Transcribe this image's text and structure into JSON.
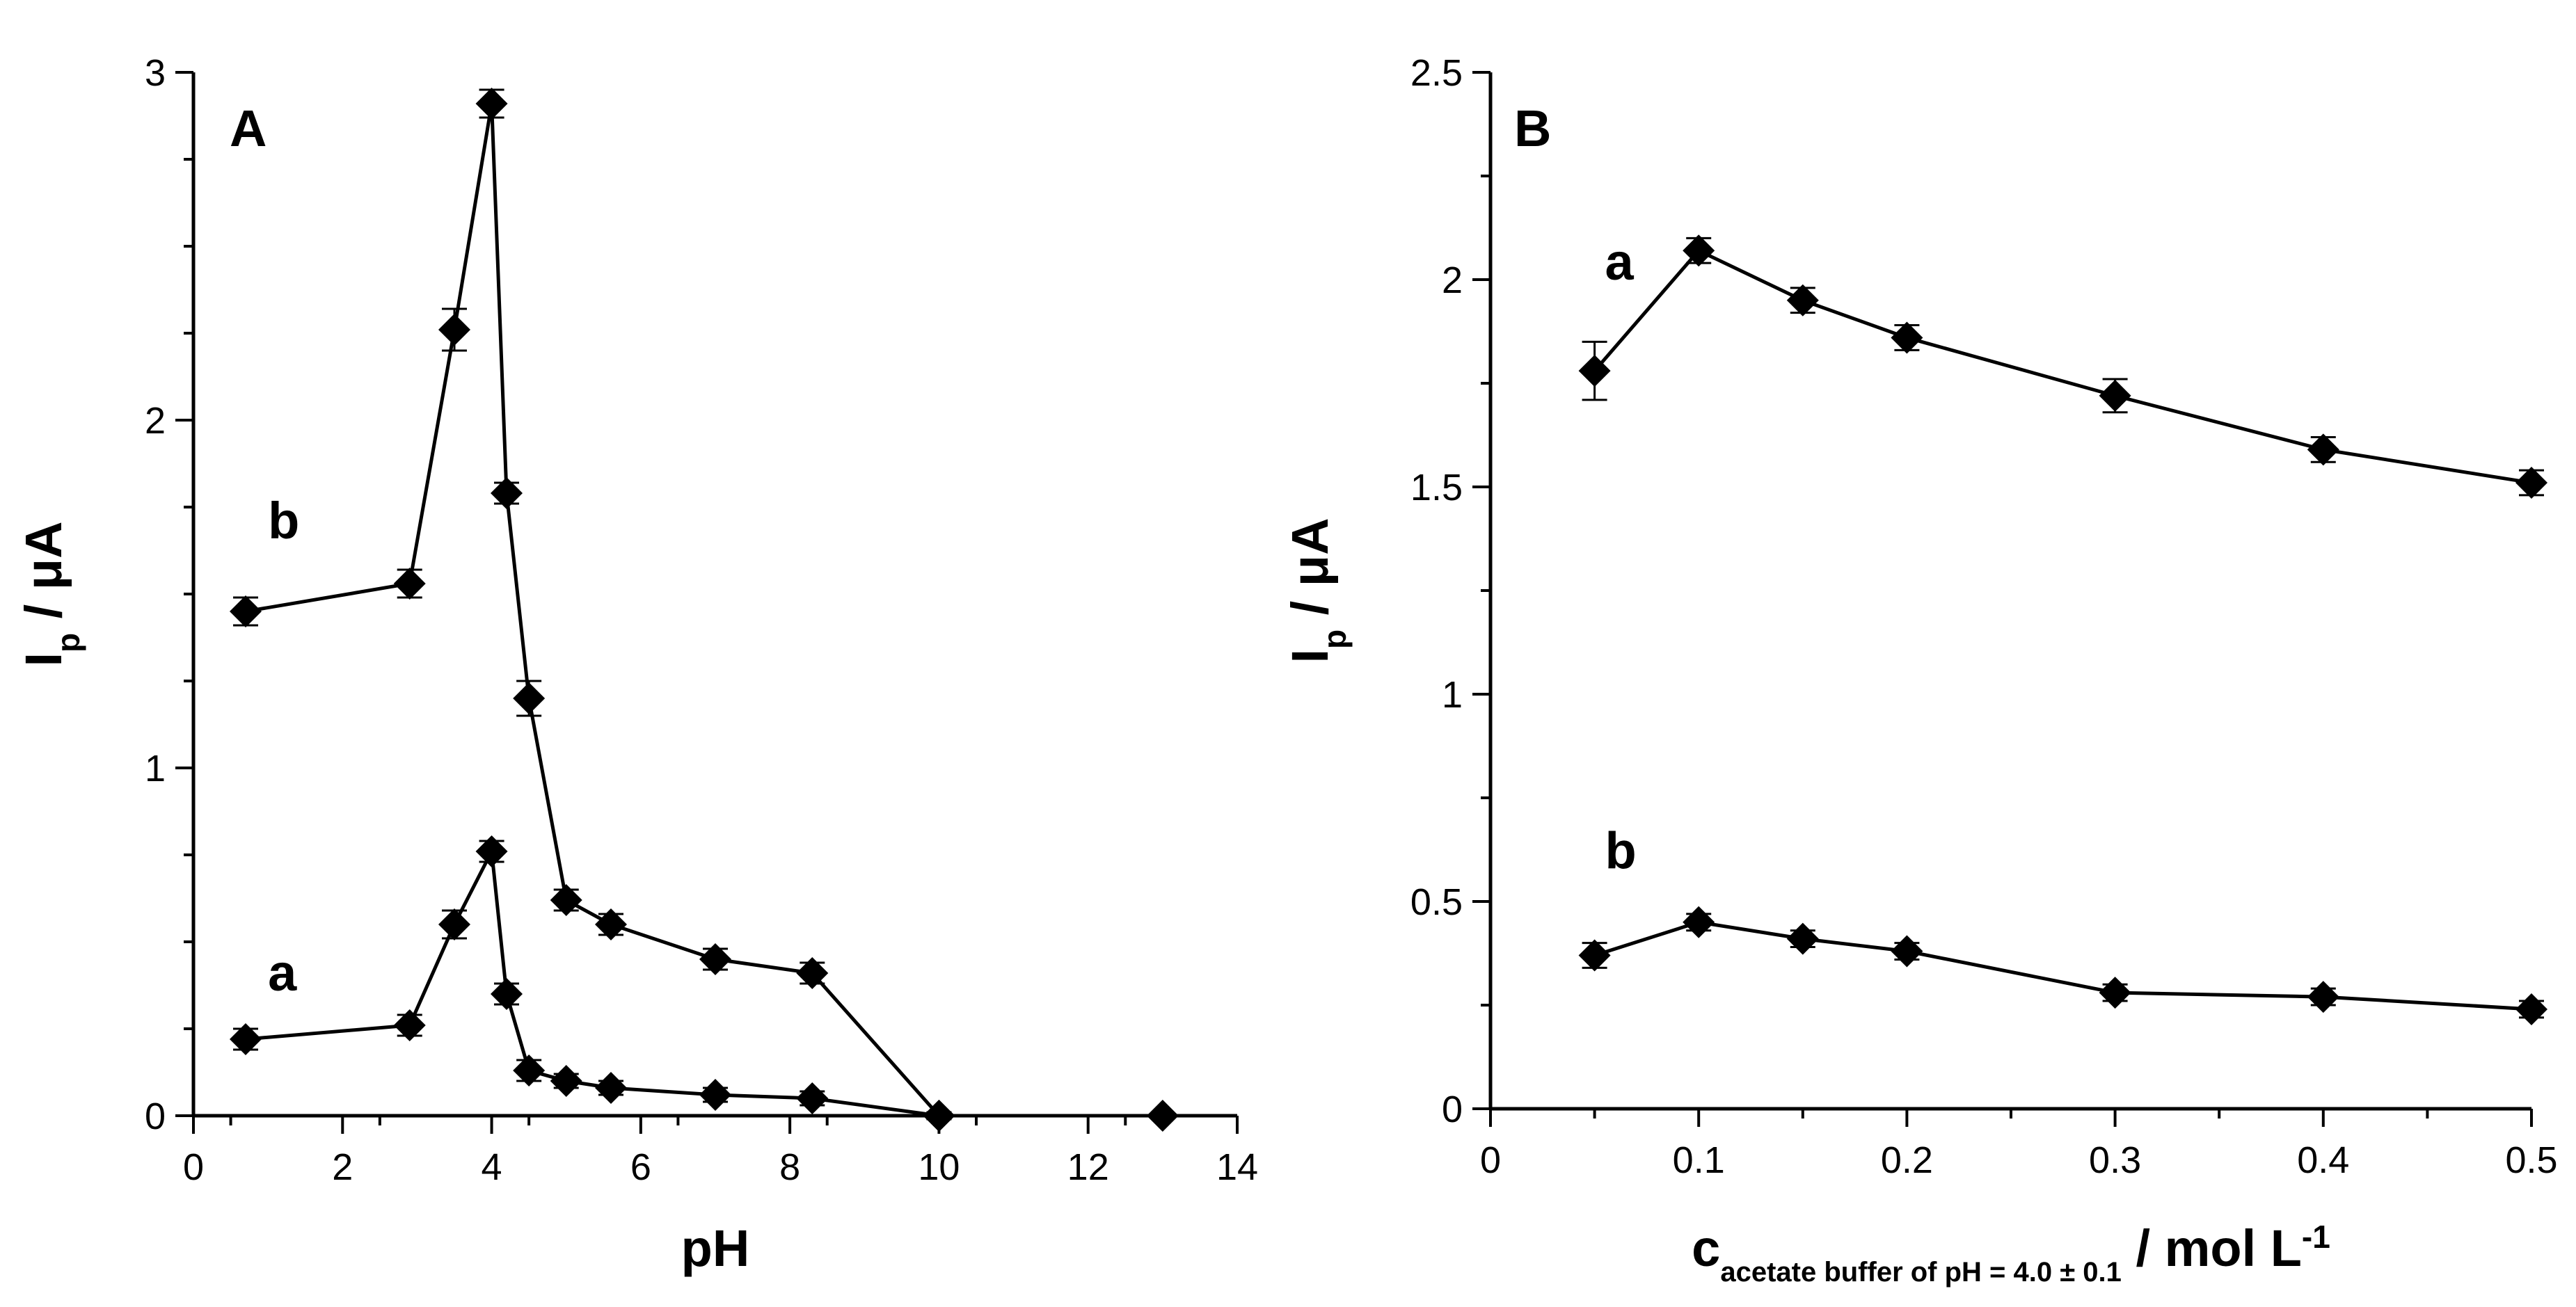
{
  "chart_data": [
    {
      "panel": "A",
      "type": "line",
      "xlabel": "pH",
      "ylabel_main": "I",
      "ylabel_sub": "p",
      "ylabel_rest": " / μA",
      "xlim": [
        0,
        14
      ],
      "ylim": [
        0,
        3
      ],
      "xticks": [
        0,
        2,
        4,
        6,
        8,
        10,
        12,
        14
      ],
      "yticks": [
        0,
        1,
        2,
        3
      ],
      "series": [
        {
          "name": "a",
          "x": [
            0.7,
            2.9,
            3.5,
            4.0,
            4.2,
            4.5,
            5.0,
            5.6,
            7.0,
            8.3,
            10.0
          ],
          "y": [
            0.22,
            0.26,
            0.55,
            0.76,
            0.35,
            0.13,
            0.1,
            0.08,
            0.06,
            0.05,
            0.0
          ],
          "err": [
            0.03,
            0.03,
            0.04,
            0.03,
            0.03,
            0.03,
            0.02,
            0.02,
            0.02,
            0.02,
            0.01
          ]
        },
        {
          "name": "b",
          "x": [
            0.7,
            2.9,
            3.5,
            4.0,
            4.2,
            4.5,
            5.0,
            5.6,
            7.0,
            8.3,
            10.0
          ],
          "y": [
            1.45,
            1.53,
            2.26,
            2.91,
            1.79,
            1.2,
            0.62,
            0.55,
            0.45,
            0.41,
            0.0
          ],
          "err": [
            0.04,
            0.04,
            0.06,
            0.04,
            0.03,
            0.05,
            0.03,
            0.03,
            0.03,
            0.03,
            0.01
          ]
        }
      ],
      "extra_points": [
        {
          "x": 13.0,
          "y": 0.0
        }
      ],
      "series_label_positions": [
        {
          "name": "a",
          "x": 1.0,
          "y": 0.36
        },
        {
          "name": "b",
          "x": 1.0,
          "y": 1.66
        }
      ]
    },
    {
      "panel": "B",
      "type": "line",
      "xlabel_main": "c",
      "xlabel_sub": "acetate buffer of  pH = 4.0 ± 0.1",
      "xlabel_rest": " / mol L",
      "xlabel_sup": "-1",
      "ylabel_main": "I",
      "ylabel_sub": "p",
      "ylabel_rest": " / μA",
      "xlim": [
        0,
        0.5
      ],
      "ylim": [
        0,
        2.5
      ],
      "xticks": [
        0,
        0.1,
        0.2,
        0.3,
        0.4,
        0.5
      ],
      "yticks": [
        0,
        0.5,
        1,
        1.5,
        2,
        2.5
      ],
      "series": [
        {
          "name": "a",
          "x": [
            0.05,
            0.1,
            0.15,
            0.2,
            0.3,
            0.4,
            0.5
          ],
          "y": [
            1.78,
            2.07,
            1.95,
            1.86,
            1.72,
            1.59,
            1.51
          ],
          "err": [
            0.07,
            0.03,
            0.03,
            0.03,
            0.04,
            0.03,
            0.03
          ]
        },
        {
          "name": "b",
          "x": [
            0.05,
            0.1,
            0.15,
            0.2,
            0.3,
            0.4,
            0.5
          ],
          "y": [
            0.37,
            0.45,
            0.41,
            0.38,
            0.28,
            0.27,
            0.24
          ],
          "err": [
            0.03,
            0.02,
            0.02,
            0.02,
            0.02,
            0.02,
            0.02
          ]
        }
      ],
      "series_label_positions": [
        {
          "name": "a",
          "x": 0.055,
          "y": 2.0
        },
        {
          "name": "b",
          "x": 0.055,
          "y": 0.58
        }
      ]
    }
  ]
}
